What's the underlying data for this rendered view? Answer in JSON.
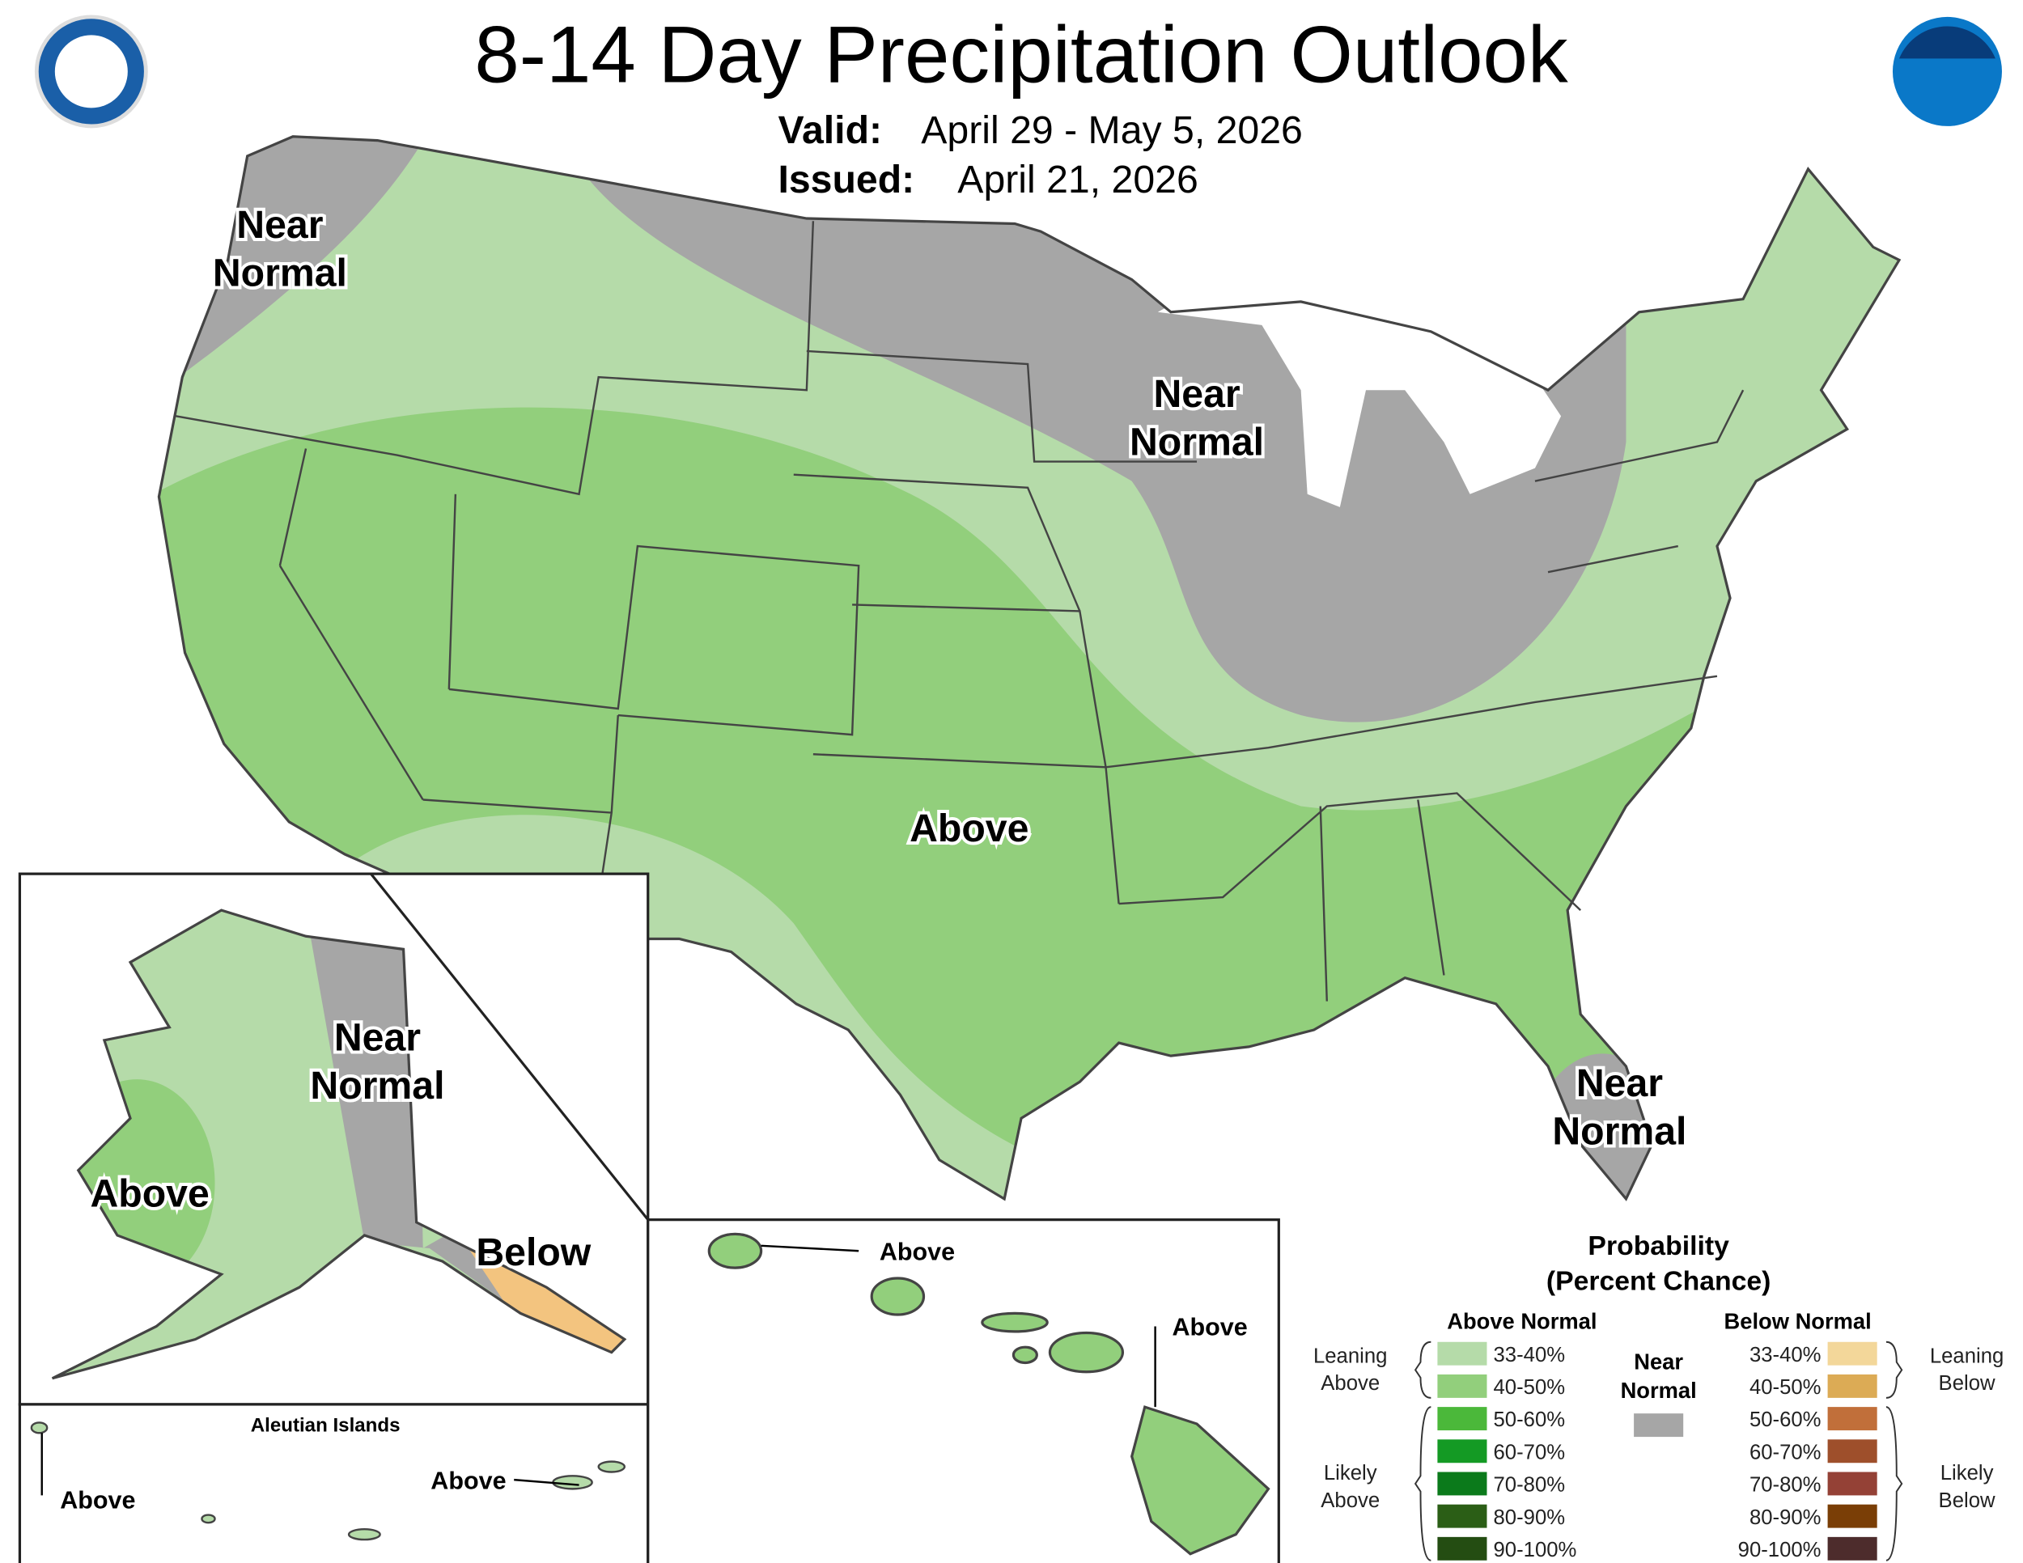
{
  "header": {
    "title": "8-14 Day Precipitation Outlook",
    "valid_label": "Valid:",
    "valid": "April 29 - May 5, 2026",
    "issued_label": "Issued:",
    "issued": "April 21, 2026"
  },
  "map_labels": [
    {
      "lines": [
        "Near",
        "Normal"
      ]
    },
    {
      "lines": [
        "Near",
        "Normal"
      ]
    },
    {
      "lines": [
        "Near",
        "Normal"
      ]
    },
    {
      "lines": [
        "Above"
      ]
    },
    {
      "lines": [
        "Near",
        "Normal"
      ]
    },
    {
      "lines": [
        "Above"
      ]
    },
    {
      "lines": [
        "Below"
      ]
    }
  ],
  "insets": {
    "aleutian_title": "Aleutian Islands",
    "labels": [
      "Above",
      "Above",
      "Above",
      "Above"
    ]
  },
  "legend": {
    "title": [
      "Probability",
      "(Percent Chance)"
    ],
    "above_heading": "Above Normal",
    "below_heading": "Below Normal",
    "near": {
      "lines": [
        "Near",
        "Normal"
      ],
      "color": "#a6a6a6"
    },
    "above_items": [
      {
        "label": "33-40%",
        "color": "#b5dba9"
      },
      {
        "label": "40-50%",
        "color": "#92cf7c"
      },
      {
        "label": "50-60%",
        "color": "#4bb83a"
      },
      {
        "label": "60-70%",
        "color": "#149a24"
      },
      {
        "label": "70-80%",
        "color": "#0b7a1b"
      },
      {
        "label": "80-90%",
        "color": "#2b5e16"
      },
      {
        "label": "90-100%",
        "color": "#244d12"
      }
    ],
    "below_items": [
      {
        "label": "33-40%",
        "color": "#f3d79a"
      },
      {
        "label": "40-50%",
        "color": "#dcab55"
      },
      {
        "label": "50-60%",
        "color": "#c16f3a"
      },
      {
        "label": "60-70%",
        "color": "#9e4f2b"
      },
      {
        "label": "70-80%",
        "color": "#944136"
      },
      {
        "label": "80-90%",
        "color": "#7a3e06"
      },
      {
        "label": "90-100%",
        "color": "#4d2c2c"
      }
    ],
    "brackets": {
      "leaning_above": [
        "Leaning",
        "Above"
      ],
      "likely_above": [
        "Likely",
        "Above"
      ],
      "leaning_below": [
        "Leaning",
        "Below"
      ],
      "likely_below": [
        "Likely",
        "Below"
      ]
    }
  }
}
